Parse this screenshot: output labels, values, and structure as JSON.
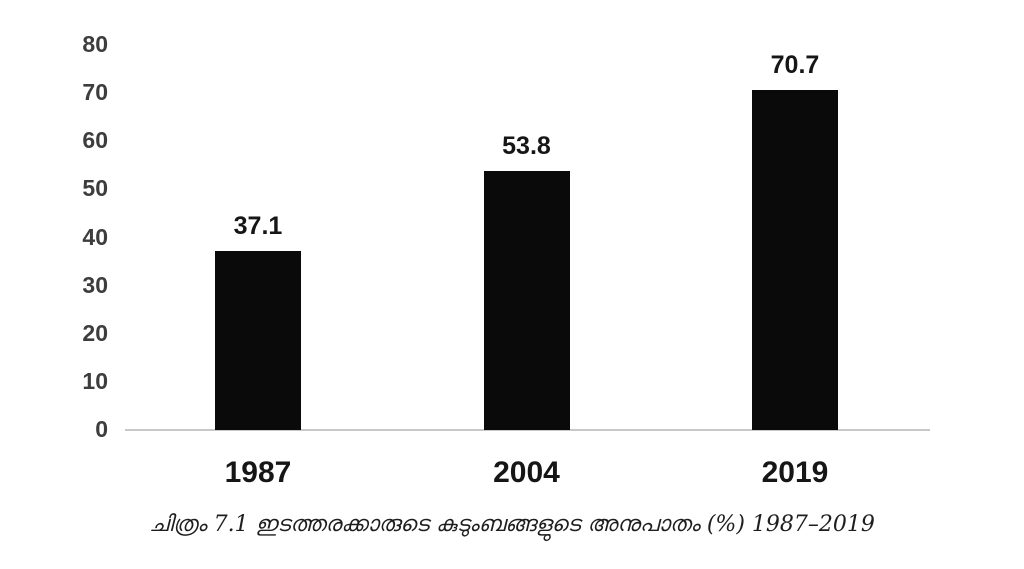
{
  "chart_data": {
    "type": "bar",
    "categories": [
      "1987",
      "2004",
      "2019"
    ],
    "values": [
      37.1,
      53.8,
      70.7
    ],
    "value_labels": [
      "37.1",
      "53.8",
      "70.7"
    ],
    "title": "",
    "xlabel": "",
    "ylabel": "",
    "ylim": [
      0,
      80
    ],
    "yticks": [
      0,
      10,
      20,
      30,
      40,
      50,
      60,
      70,
      80
    ],
    "grid": false,
    "legend_position": "none",
    "bar_color": "#0a0a0a",
    "axis_line_color": "#c8c8c8",
    "tick_label_color": "#3d3d3d",
    "data_label_color": "#161616",
    "caption": "ചിത്രം 7.1 ഇടത്തരക്കാരുടെ കുടുംബങ്ങളുടെ അനുപാതം (%) 1987–2019"
  }
}
